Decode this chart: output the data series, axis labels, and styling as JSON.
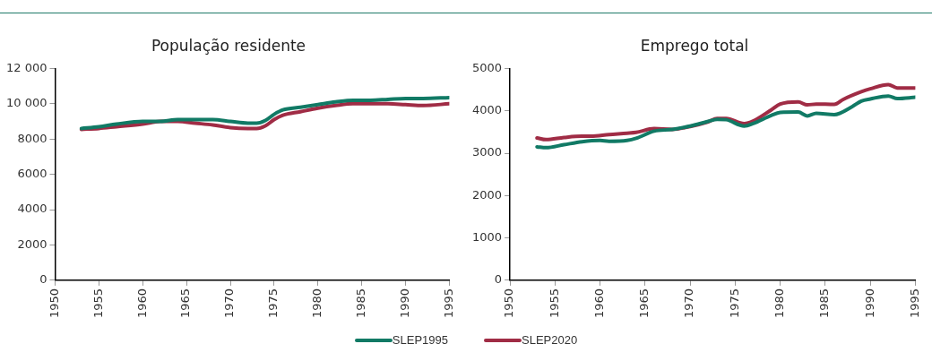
{
  "chart_data": [
    {
      "type": "line",
      "title": "População residente",
      "xlim": [
        1950,
        1995
      ],
      "xticks": [
        1950,
        1955,
        1960,
        1965,
        1970,
        1975,
        1980,
        1985,
        1990,
        1995
      ],
      "ylim": [
        0,
        12000
      ],
      "yticks": [
        0,
        2000,
        4000,
        6000,
        8000,
        {
          "value": 10000,
          "label": "10 000"
        },
        {
          "value": 12000,
          "label": "12 000"
        }
      ],
      "grid": false,
      "legend": "bottom",
      "marker": "none",
      "series": [
        {
          "name": "SLEP1995",
          "color": "#117a65",
          "x": [
            1953,
            1955,
            1957,
            1960,
            1962,
            1964,
            1966,
            1968,
            1970,
            1972,
            1973,
            1974,
            1975,
            1976,
            1978,
            1980,
            1982,
            1984,
            1986,
            1988,
            1990,
            1992,
            1995
          ],
          "values": [
            8600,
            8700,
            8850,
            9000,
            9000,
            9100,
            9100,
            9100,
            9000,
            8900,
            8900,
            9050,
            9400,
            9650,
            9800,
            9950,
            10100,
            10200,
            10200,
            10250,
            10300,
            10300,
            10350
          ]
        },
        {
          "name": "SLEP2020",
          "color": "#a02c45",
          "x": [
            1953,
            1955,
            1957,
            1960,
            1962,
            1964,
            1966,
            1968,
            1970,
            1972,
            1973,
            1974,
            1975,
            1976,
            1978,
            1980,
            1982,
            1984,
            1986,
            1988,
            1990,
            1992,
            1995
          ],
          "values": [
            8550,
            8600,
            8700,
            8850,
            9000,
            9000,
            8900,
            8800,
            8650,
            8600,
            8600,
            8750,
            9100,
            9350,
            9550,
            9750,
            9900,
            10000,
            10000,
            10000,
            9950,
            9900,
            10000
          ]
        }
      ]
    },
    {
      "type": "line",
      "title": "Emprego total",
      "xlim": [
        1950,
        1995
      ],
      "xticks": [
        1950,
        1955,
        1960,
        1965,
        1970,
        1975,
        1980,
        1985,
        1990,
        1995
      ],
      "ylim": [
        0,
        5000
      ],
      "yticks": [
        0,
        1000,
        2000,
        3000,
        4000,
        5000
      ],
      "grid": false,
      "marker": "none",
      "series": [
        {
          "color": "#117a65",
          "x": [
            1953,
            1954,
            1956,
            1958,
            1960,
            1961,
            1963,
            1964,
            1966,
            1968,
            1970,
            1972,
            1973,
            1974,
            1976,
            1977,
            1979,
            1980,
            1982,
            1983,
            1984,
            1986,
            1988,
            1989,
            1990,
            1992,
            1993,
            1995
          ],
          "values": [
            3150,
            3130,
            3200,
            3270,
            3300,
            3280,
            3300,
            3350,
            3520,
            3560,
            3640,
            3750,
            3800,
            3790,
            3640,
            3700,
            3890,
            3960,
            3970,
            3880,
            3940,
            3910,
            4100,
            4230,
            4280,
            4350,
            4290,
            4320
          ]
        },
        {
          "color": "#a02c45",
          "x": [
            1953,
            1954,
            1956,
            1958,
            1959,
            1961,
            1963,
            1964,
            1966,
            1968,
            1970,
            1972,
            1973,
            1974,
            1976,
            1977,
            1979,
            1980,
            1982,
            1983,
            1984,
            1986,
            1987,
            1989,
            1990,
            1992,
            1993,
            1995
          ],
          "values": [
            3360,
            3320,
            3370,
            3400,
            3400,
            3440,
            3470,
            3490,
            3580,
            3560,
            3630,
            3740,
            3820,
            3820,
            3700,
            3760,
            4020,
            4160,
            4210,
            4140,
            4160,
            4150,
            4270,
            4450,
            4520,
            4620,
            4540,
            4540
          ]
        }
      ]
    }
  ]
}
